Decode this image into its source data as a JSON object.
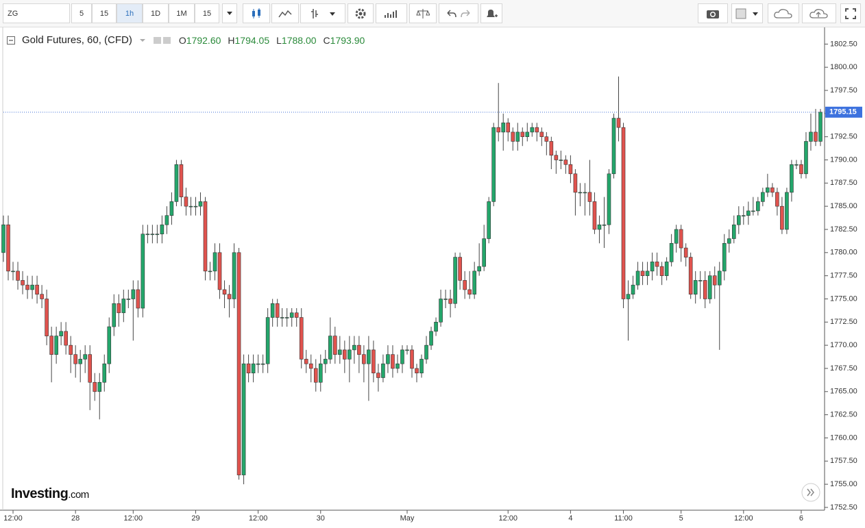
{
  "toolbar": {
    "symbol": "ZG",
    "intervals": [
      "5",
      "15",
      "1h",
      "1D",
      "1M",
      "15"
    ],
    "selected": 2
  },
  "header": {
    "title": "Gold Futures, 60, (CFD)",
    "ohlc": [
      {
        "key": "O",
        "value": "1792.60"
      },
      {
        "key": "H",
        "value": "1794.05"
      },
      {
        "key": "L",
        "value": "1788.00"
      },
      {
        "key": "C",
        "value": "1793.90"
      }
    ]
  },
  "logo": {
    "name": "Investing",
    "suffix": ".com"
  },
  "chart_data": {
    "type": "candlestick",
    "up_color": "#24a66b",
    "down_color": "#e0534e",
    "last_price": 1795.15,
    "categories": [
      null,
      null,
      "12:00",
      null,
      null,
      null,
      null,
      null,
      null,
      null,
      null,
      null,
      null,
      null,
      null,
      "28",
      null,
      null,
      null,
      null,
      null,
      null,
      null,
      null,
      null,
      null,
      null,
      "12:00",
      null,
      null,
      null,
      null,
      null,
      null,
      null,
      null,
      null,
      null,
      null,
      null,
      "29",
      null,
      null,
      null,
      null,
      null,
      null,
      null,
      null,
      null,
      null,
      null,
      null,
      "12:00",
      null,
      null,
      null,
      null,
      null,
      null,
      null,
      null,
      null,
      null,
      null,
      null,
      "30",
      null,
      null,
      null,
      null,
      null,
      null,
      null,
      null,
      null,
      null,
      null,
      null,
      null,
      null,
      null,
      null,
      null,
      "May",
      null,
      null,
      null,
      null,
      null,
      null,
      null,
      null,
      null,
      null,
      null,
      null,
      null,
      null,
      null,
      null,
      null,
      null,
      null,
      null,
      "12:00",
      null,
      null,
      null,
      null,
      null,
      null,
      null,
      null,
      null,
      null,
      null,
      null,
      "4",
      null,
      null,
      null,
      null,
      null,
      null,
      null,
      null,
      null,
      null,
      "11:00",
      null,
      null,
      null,
      null,
      null,
      null,
      null,
      null,
      null,
      null,
      null,
      "5",
      null,
      null,
      null,
      null,
      null,
      null,
      null,
      null,
      null,
      null,
      null,
      null,
      "12:00",
      null,
      null,
      null,
      null,
      null,
      null,
      null,
      null,
      null,
      null,
      null,
      "6",
      null,
      null,
      null,
      null
    ],
    "open": [
      1780,
      1783,
      1778,
      1778,
      1777,
      1776.5,
      1776,
      1776.5,
      1775.5,
      1775,
      1771,
      1769,
      1771,
      1771.5,
      1770,
      1769,
      1768,
      1768.5,
      1769,
      1766,
      1765,
      1766,
      1768,
      1772,
      1774.5,
      1773.5,
      1775,
      1775,
      1776,
      1774,
      1782,
      1782,
      1782,
      1782,
      1783,
      1784,
      1785.5,
      1789.5,
      1786,
      1785,
      1785,
      1785,
      1785.5,
      1778,
      1778,
      1780,
      1776,
      1775.5,
      1775,
      1780,
      1756,
      1768,
      1767,
      1768,
      1768,
      1768,
      1773,
      1774.5,
      1773,
      1773,
      1773,
      1773.5,
      1773,
      1768.5,
      1768,
      1767.5,
      1766,
      1768,
      1768.5,
      1771,
      1769,
      1769.5,
      1768.5,
      1769.5,
      1770,
      1769,
      1768,
      1769.5,
      1767,
      1766.5,
      1768,
      1769,
      1767.5,
      1768,
      1769.5,
      1769.5,
      1767.5,
      1767,
      1768.5,
      1770,
      1771.5,
      1772.5,
      1775,
      1775,
      1774.5,
      1779.5,
      1777,
      1776,
      1775.5,
      1778,
      1778.5,
      1781.5,
      1785.5,
      1793.5,
      1793,
      1794,
      1793,
      1792,
      1793,
      1792.5,
      1793,
      1793.5,
      1793,
      1792.5,
      1792,
      1790.5,
      1790,
      1790,
      1789.5,
      1788.5,
      1786.5,
      1786.5,
      1786.5,
      1785.5,
      1782.5,
      1783,
      1783,
      1788.5,
      1794.5,
      1793.5,
      1775,
      1775.5,
      1776.5,
      1778,
      1777.5,
      1778,
      1779,
      1778.5,
      1777.5,
      1779,
      1781,
      1782.5,
      1780.5,
      1779.5,
      1775.5,
      1777,
      1777,
      1775,
      1777.5,
      1776.5,
      1778,
      1781,
      1781.5,
      1783,
      1784,
      1784,
      1784.5,
      1784.5,
      1785.5,
      1786.5,
      1787,
      1786.5,
      1785,
      1782.5,
      1786.5,
      1789.5,
      1789.5,
      1788.5,
      1792,
      1793,
      1792
    ],
    "high": [
      1784,
      1784,
      1779,
      1779,
      1778,
      1777.5,
      1777.5,
      1777.5,
      1776.5,
      1776,
      1772,
      1772,
      1772.5,
      1772.5,
      1771,
      1770,
      1769.5,
      1770,
      1770,
      1767,
      1767,
      1769,
      1773,
      1775.5,
      1775.5,
      1776,
      1776,
      1777,
      1777,
      1783,
      1783,
      1783,
      1783,
      1784,
      1785,
      1786.5,
      1790,
      1790,
      1787,
      1786,
      1786,
      1786.5,
      1786,
      1779,
      1781,
      1781,
      1777,
      1776.5,
      1781,
      1780.5,
      1769,
      1769,
      1769,
      1769,
      1769,
      1774,
      1775,
      1775,
      1774,
      1774,
      1774,
      1774,
      1774,
      1769.5,
      1769,
      1768.5,
      1769,
      1769.5,
      1773,
      1772,
      1771,
      1770.5,
      1771,
      1771,
      1771,
      1770,
      1771,
      1770.5,
      1768,
      1769,
      1770,
      1770,
      1769,
      1770,
      1770,
      1770,
      1768,
      1769,
      1771,
      1772,
      1773,
      1776,
      1776,
      1776,
      1780,
      1780,
      1778,
      1778,
      1779,
      1781,
      1783,
      1786,
      1794,
      1798.3,
      1795,
      1794.5,
      1793.5,
      1794,
      1793.5,
      1794,
      1794,
      1794,
      1793.5,
      1793,
      1792.5,
      1791,
      1791,
      1790.5,
      1790.5,
      1789,
      1787.5,
      1787.5,
      1790,
      1786.5,
      1784,
      1786,
      1789,
      1795,
      1799,
      1794,
      1777,
      1777.5,
      1779,
      1779,
      1779,
      1780,
      1780,
      1779,
      1779.5,
      1782,
      1783,
      1783,
      1781,
      1780,
      1778,
      1778,
      1778,
      1778,
      1778.5,
      1779,
      1782,
      1782.5,
      1784,
      1785,
      1785,
      1785.5,
      1786,
      1786,
      1787,
      1788.5,
      1787.5,
      1787,
      1786,
      1787,
      1790,
      1790,
      1790,
      1793,
      1795,
      1795.5,
      1795.5
    ],
    "low": [
      1779,
      1777,
      1777,
      1776,
      1775.5,
      1775,
      1775,
      1774.5,
      1774,
      1770,
      1766,
      1768,
      1770,
      1769,
      1767,
      1766.5,
      1766,
      1767,
      1763,
      1764,
      1762,
      1765,
      1767,
      1771,
      1772,
      1772.5,
      1774,
      1770.5,
      1773,
      1773,
      1781,
      1781,
      1781,
      1781,
      1782,
      1783,
      1785,
      1785,
      1784,
      1784,
      1784,
      1784,
      1777,
      1777,
      1777,
      1775,
      1774,
      1773,
      1774,
      1755.5,
      1755,
      1766,
      1766,
      1767,
      1767,
      1767,
      1772,
      1772,
      1772,
      1772,
      1772,
      1772,
      1767.5,
      1767,
      1766,
      1765,
      1765,
      1767,
      1768,
      1768,
      1768,
      1767,
      1766,
      1768,
      1767,
      1766,
      1764,
      1766,
      1765,
      1766,
      1767,
      1766.5,
      1767,
      1767,
      1769,
      1766.5,
      1766,
      1766.5,
      1768,
      1769.5,
      1771,
      1772,
      1774,
      1773,
      1774,
      1776,
      1775,
      1775,
      1775,
      1777.5,
      1778,
      1781,
      1785,
      1792,
      1791,
      1792,
      1791,
      1791,
      1791.5,
      1792,
      1792.5,
      1792,
      1791.5,
      1790.5,
      1789,
      1788.5,
      1789,
      1788.5,
      1787.5,
      1784,
      1785,
      1784,
      1784,
      1782,
      1781,
      1780.5,
      1782,
      1788,
      1792,
      1774,
      1770.5,
      1775,
      1776,
      1776.5,
      1776.5,
      1777,
      1777.5,
      1776.5,
      1777,
      1778.5,
      1780,
      1779,
      1778.5,
      1775,
      1774.5,
      1775,
      1774,
      1774.5,
      1775,
      1769.5,
      1777,
      1780,
      1781,
      1782,
      1783,
      1783,
      1784,
      1784,
      1785,
      1786,
      1786,
      1784,
      1782,
      1782,
      1785.5,
      1789,
      1788,
      1788,
      1791,
      1791.5,
      1791.5
    ],
    "close": [
      1783,
      1778,
      1778,
      1777,
      1776.5,
      1776,
      1776.5,
      1775.5,
      1775,
      1771,
      1769,
      1771,
      1771.5,
      1770,
      1769,
      1768,
      1768.5,
      1769,
      1766,
      1765,
      1766,
      1768,
      1772,
      1774.5,
      1773.5,
      1775,
      1775,
      1776,
      1774,
      1782,
      1782,
      1782,
      1782,
      1783,
      1784,
      1785.5,
      1789.5,
      1786,
      1785,
      1785,
      1785,
      1785.5,
      1778,
      1778,
      1780,
      1776,
      1775.5,
      1775,
      1780,
      1756,
      1768,
      1767,
      1768,
      1768,
      1768,
      1773,
      1774.5,
      1773,
      1773,
      1773,
      1773.5,
      1773,
      1768.5,
      1768,
      1767.5,
      1766,
      1768,
      1768.5,
      1771,
      1769,
      1769.5,
      1768.5,
      1769.5,
      1770,
      1769,
      1768,
      1769.5,
      1767,
      1766.5,
      1768,
      1769,
      1767.5,
      1768,
      1769.5,
      1769.5,
      1767.5,
      1767,
      1768.5,
      1770,
      1771.5,
      1772.5,
      1775,
      1775,
      1774.5,
      1779.5,
      1777,
      1776,
      1775.5,
      1778,
      1778.5,
      1781.5,
      1785.5,
      1793.5,
      1793,
      1794,
      1793,
      1792,
      1793,
      1792.5,
      1793,
      1793.5,
      1793,
      1792.5,
      1792,
      1790.5,
      1790,
      1790,
      1789.5,
      1788.5,
      1786.5,
      1786.5,
      1786.5,
      1785.5,
      1782.5,
      1783,
      1783,
      1788.5,
      1794.5,
      1793.5,
      1775,
      1775.5,
      1776.5,
      1778,
      1777.5,
      1778,
      1779,
      1778.5,
      1777.5,
      1779,
      1781,
      1782.5,
      1780.5,
      1779.5,
      1775.5,
      1777,
      1777,
      1775,
      1777.5,
      1776.5,
      1778,
      1781,
      1781.5,
      1783,
      1784,
      1784,
      1784.5,
      1784.5,
      1785.5,
      1786.5,
      1787,
      1786.5,
      1785,
      1782.5,
      1786.5,
      1789.5,
      1789.5,
      1788.5,
      1792,
      1793,
      1792,
      1795.15
    ],
    "ylim": [
      1752.2,
      1804.3
    ],
    "yticks": [
      {
        "value": 1752.5,
        "label": "1752.50"
      },
      {
        "value": 1755,
        "label": "1755.00"
      },
      {
        "value": 1757.5,
        "label": "1757.50"
      },
      {
        "value": 1760,
        "label": "1760.00"
      },
      {
        "value": 1762.5,
        "label": "1762.50"
      },
      {
        "value": 1765,
        "label": "1765.00"
      },
      {
        "value": 1767.5,
        "label": "1767.50"
      },
      {
        "value": 1770,
        "label": "1770.00"
      },
      {
        "value": 1772.5,
        "label": "1772.50"
      },
      {
        "value": 1775,
        "label": "1775.00"
      },
      {
        "value": 1777.5,
        "label": "1777.50"
      },
      {
        "value": 1780,
        "label": "1780.00"
      },
      {
        "value": 1782.5,
        "label": "1782.50"
      },
      {
        "value": 1785,
        "label": "1785.00"
      },
      {
        "value": 1787.5,
        "label": "1787.50"
      },
      {
        "value": 1790,
        "label": "1790.00"
      },
      {
        "value": 1792.5,
        "label": "1792.50"
      },
      {
        "value": 1795,
        "label": "1795.00"
      },
      {
        "value": 1797.5,
        "label": "1797.50"
      },
      {
        "value": 1800,
        "label": "1800.00"
      },
      {
        "value": 1802.5,
        "label": "1802.50"
      }
    ]
  }
}
